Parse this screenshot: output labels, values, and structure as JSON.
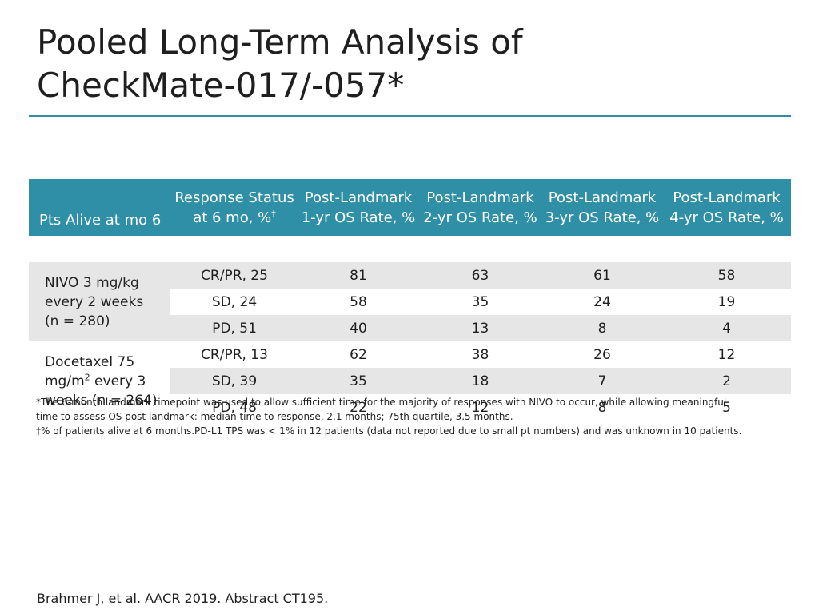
{
  "slide": {
    "title_line1": "Pooled Long-Term Analysis of",
    "title_line2": "CheckMate-017/-057*",
    "citation": "Brahmer J, et al. AACR 2019. Abstract CT195."
  },
  "table": {
    "headers": [
      {
        "line1": "",
        "line2": "Pts Alive at mo 6"
      },
      {
        "line1": "Response Status",
        "line2": "at 6 mo, %",
        "sup": "†"
      },
      {
        "line1": "Post-Landmark",
        "line2": "1-yr OS Rate, %"
      },
      {
        "line1": "Post-Landmark",
        "line2": "2-yr OS Rate, %"
      },
      {
        "line1": "Post-Landmark",
        "line2": "3-yr OS Rate, %"
      },
      {
        "line1": "Post-Landmark",
        "line2": "4-yr OS Rate, %"
      }
    ],
    "groups": [
      {
        "label_lines": [
          "NIVO 3 mg/kg",
          "every 2 weeks",
          "(n = 280)"
        ],
        "rows": [
          {
            "status": "CR/PR, 25",
            "y1": "81",
            "y2": "63",
            "y3": "61",
            "y4": "58"
          },
          {
            "status": "SD, 24",
            "y1": "58",
            "y2": "35",
            "y3": "24",
            "y4": "19"
          },
          {
            "status": "PD, 51",
            "y1": "40",
            "y2": "13",
            "y3": "8",
            "y4": "4"
          }
        ]
      },
      {
        "label_line1": "Docetaxel 75",
        "label_line2_pre": "mg/m",
        "label_line2_sup": "2",
        "label_line2_post": " every 3",
        "label_line3": "weeks (n = 264)",
        "rows": [
          {
            "status": "CR/PR, 13",
            "y1": "62",
            "y2": "38",
            "y3": "26",
            "y4": "12"
          },
          {
            "status": "SD, 39",
            "y1": "35",
            "y2": "18",
            "y3": "7",
            "y4": "2"
          },
          {
            "status": "PD, 48",
            "y1": "22",
            "y2": "12",
            "y3": "8",
            "y4": "5"
          }
        ]
      }
    ]
  },
  "footnotes": {
    "line1": "*The 6-month landmark timepoint was used to allow sufficient time for the majority of responses with NIVO to occur, while allowing meaningful",
    "line2": "time to assess OS post landmark: median time to response, 2.1 months; 75th quartile, 3.5 months.",
    "line3": "†% of patients alive at 6 months.PD-L1 TPS was < 1% in 12 patients (data not reported due to small pt numbers) and was unknown in 10 patients."
  },
  "colors": {
    "accent": "#2e8fa6",
    "row_shade": "#e6e6e6"
  }
}
